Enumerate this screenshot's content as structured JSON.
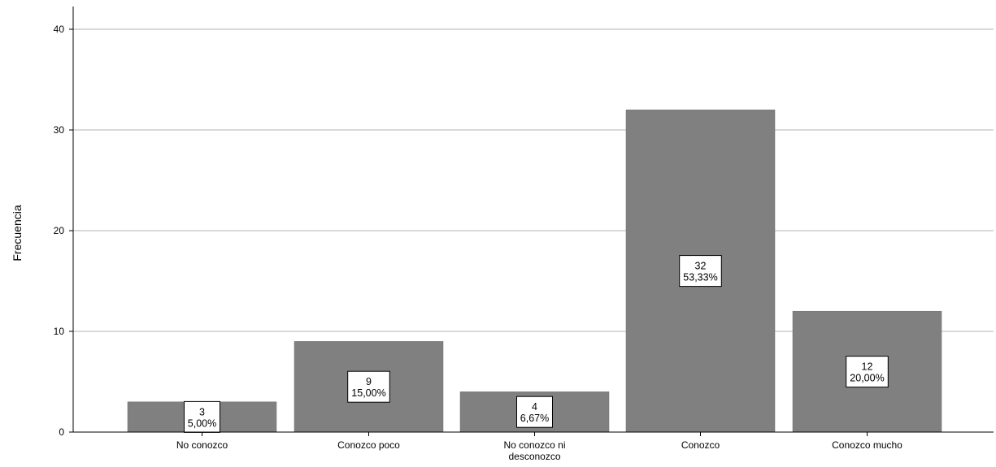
{
  "chart_data": {
    "type": "bar",
    "categories": [
      [
        "No conozco"
      ],
      [
        "Conozco poco"
      ],
      [
        "No conozco ni",
        "desconozco"
      ],
      [
        "Conozco"
      ],
      [
        "Conozco mucho"
      ]
    ],
    "values": [
      3,
      9,
      4,
      32,
      12
    ],
    "percent_labels": [
      "5,00%",
      "15,00%",
      "6,67%",
      "53,33%",
      "20,00%"
    ],
    "count_labels": [
      "3",
      "9",
      "4",
      "32",
      "12"
    ],
    "ylabel": "Frecuencia",
    "ylim": [
      0,
      42
    ],
    "yticks": [
      0,
      10,
      20,
      30,
      40
    ],
    "grid": true,
    "colors": {
      "bar": "#808080",
      "grid": "#d9d9d9",
      "axis": "#000000"
    }
  }
}
